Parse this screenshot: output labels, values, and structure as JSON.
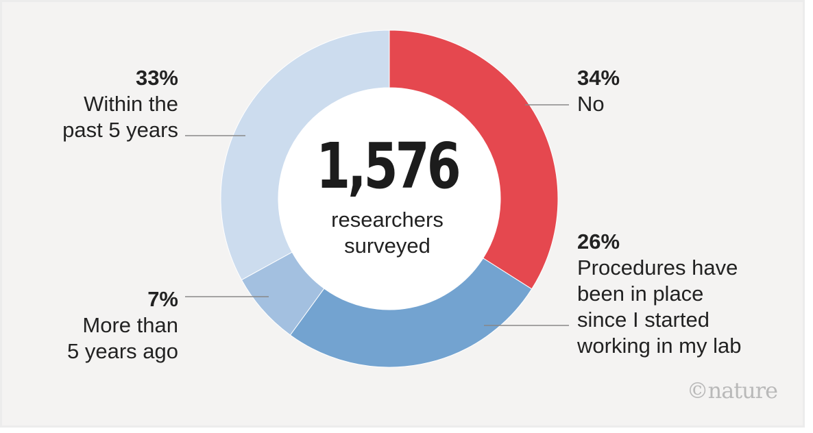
{
  "chart_data": {
    "type": "pie",
    "style": "donut",
    "center_total": "1,576",
    "center_caption": "researchers\nsurveyed",
    "slices": [
      {
        "label": "No",
        "value": 34,
        "pct_label": "34%",
        "color": "#e5484f"
      },
      {
        "label": "Procedures have\nbeen in place\nsince I started\nworking in my lab",
        "value": 26,
        "pct_label": "26%",
        "color": "#73a3d0"
      },
      {
        "label": "More than\n5 years ago",
        "value": 7,
        "pct_label": "7%",
        "color": "#a3c0e0"
      },
      {
        "label": "Within the\npast 5 years",
        "value": 33,
        "pct_label": "33%",
        "color": "#ccdcee"
      }
    ]
  },
  "credit": "©nature"
}
